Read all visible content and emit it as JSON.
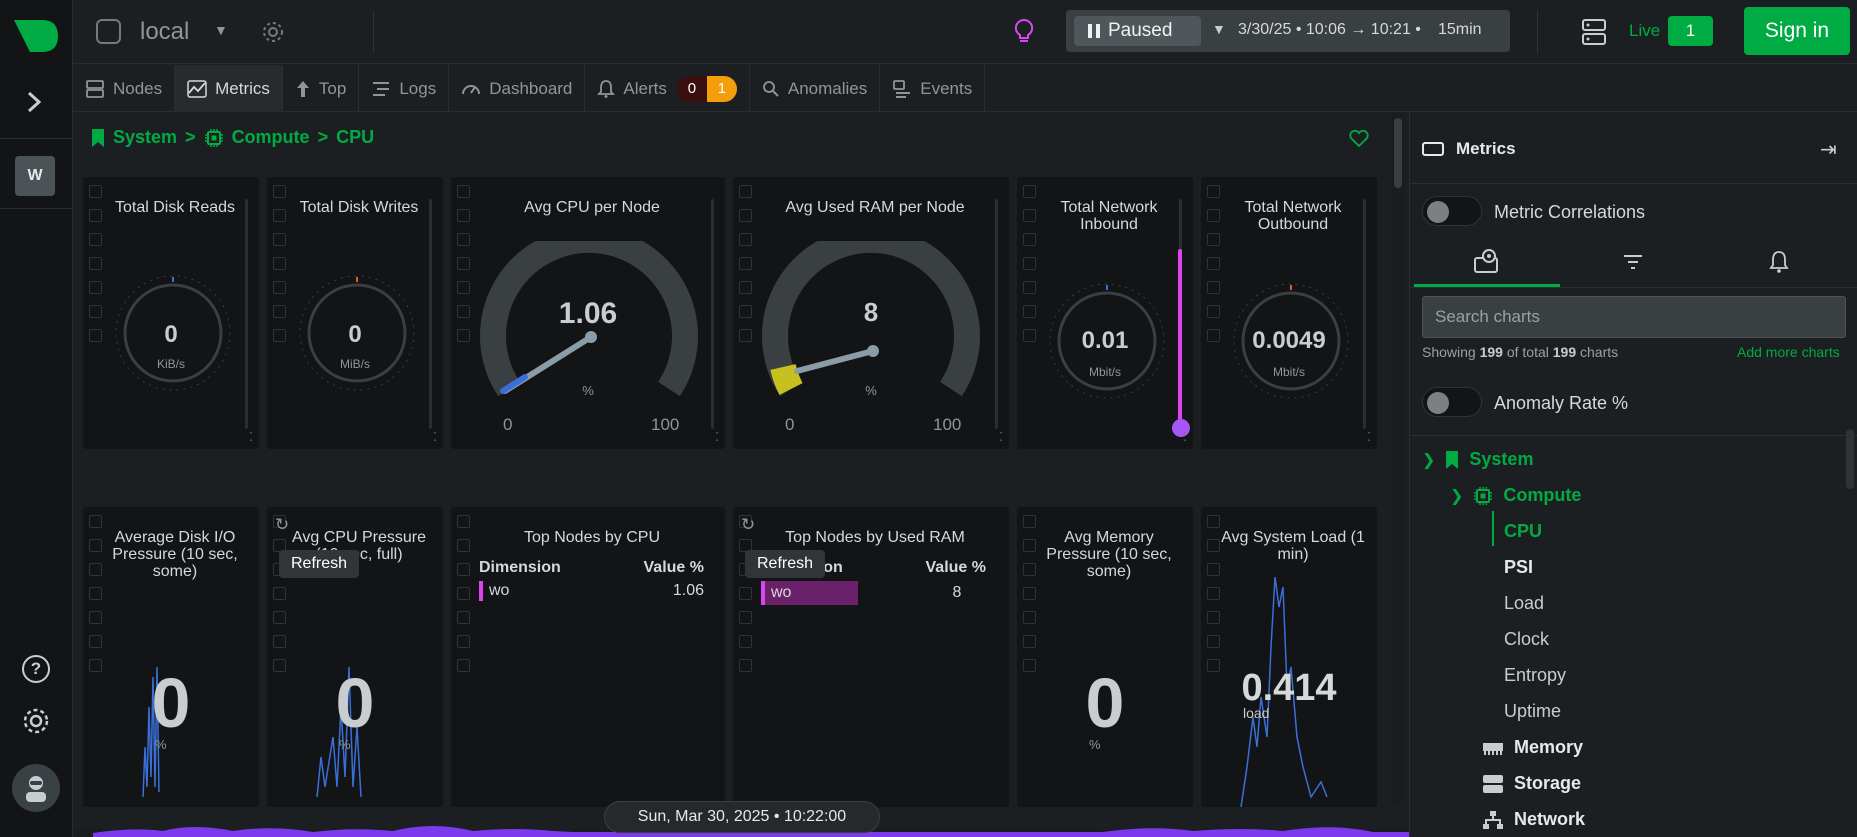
{
  "rail": {
    "space_initial": "W"
  },
  "topbar": {
    "room_name": "local",
    "playback_state": "Paused",
    "time_range": "3/30/25 • 10:06 → 10:21 •",
    "duration": "15min",
    "live_label": "Live",
    "live_count": "1",
    "signin_label": "Sign in"
  },
  "tabs": [
    {
      "label": "Nodes",
      "icon": "nodes-icon"
    },
    {
      "label": "Metrics",
      "icon": "metrics-icon",
      "active": true
    },
    {
      "label": "Top",
      "icon": "arrow-up-icon"
    },
    {
      "label": "Logs",
      "icon": "logs-icon"
    },
    {
      "label": "Dashboard",
      "icon": "dashboard-icon"
    },
    {
      "label": "Alerts",
      "icon": "bell-icon",
      "critical": "0",
      "warning": "1"
    },
    {
      "label": "Anomalies",
      "icon": "anomalies-icon"
    },
    {
      "label": "Events",
      "icon": "events-icon"
    }
  ],
  "breadcrumb": {
    "system": "System",
    "sep": ">",
    "compute": "Compute",
    "cpu": "CPU"
  },
  "cards_row1": [
    {
      "title": "Total Disk Reads",
      "value": "0",
      "unit": "KiB/s"
    },
    {
      "title": "Total Disk Writes",
      "value": "0",
      "unit": "MiB/s"
    },
    {
      "title": "Avg CPU per Node",
      "value": "1.06",
      "unit": "%",
      "min": "0",
      "max": "100",
      "gauge_fraction": 0.0106
    },
    {
      "title": "Avg Used RAM per Node",
      "value": "8",
      "unit": "%",
      "min": "0",
      "max": "100",
      "gauge_fraction": 0.08
    },
    {
      "title": "Total Network Inbound",
      "value": "0.01",
      "unit": "Mbit/s"
    },
    {
      "title": "Total Network Outbound",
      "value": "0.0049",
      "unit": "Mbit/s"
    }
  ],
  "cards_row2": [
    {
      "title": "Average Disk I/O Pressure (10 sec, some)",
      "value": "0",
      "unit": "%"
    },
    {
      "title": "Avg CPU Pressure (10 sec, full)",
      "value": "0",
      "unit": "%"
    },
    {
      "title": "Top Nodes by CPU",
      "col_dim": "Dimension",
      "col_val": "Value %",
      "rows": [
        {
          "name": "wo",
          "value": "1.06"
        }
      ]
    },
    {
      "title": "Top Nodes by Used RAM",
      "col_dim": "Dimension",
      "col_val": "Value %",
      "rows": [
        {
          "name": "wo",
          "value": "8"
        }
      ]
    },
    {
      "title": "Avg Memory Pressure (10 sec, some)",
      "value": "0",
      "unit": "%"
    },
    {
      "title": "Avg System Load (1 min)",
      "value": "0.414",
      "unit": "load"
    }
  ],
  "tooltips": {
    "refresh": "Refresh"
  },
  "footer": {
    "datetime": "Sun, Mar 30, 2025 • 10:22:00"
  },
  "panel": {
    "title": "Metrics",
    "metric_correlations": "Metric Correlations",
    "search_placeholder": "Search charts",
    "showing_prefix": "Showing",
    "showing_count": "199",
    "showing_mid": "of total",
    "showing_total": "199",
    "showing_suffix": "charts",
    "add_more": "Add more charts",
    "anomaly_rate": "Anomaly Rate %",
    "tree": {
      "system": "System",
      "compute": "Compute",
      "cpu": "CPU",
      "psi": "PSI",
      "load": "Load",
      "clock": "Clock",
      "entropy": "Entropy",
      "uptime": "Uptime",
      "memory": "Memory",
      "storage": "Storage",
      "network": "Network"
    }
  },
  "colors": {
    "accent": "#00ab44",
    "warning": "#f59e0b",
    "critical": "#3a0f0f",
    "bar_pink": "#d946ef",
    "line_blue": "#3b6fd8",
    "ram_yellow": "#c8c020"
  }
}
